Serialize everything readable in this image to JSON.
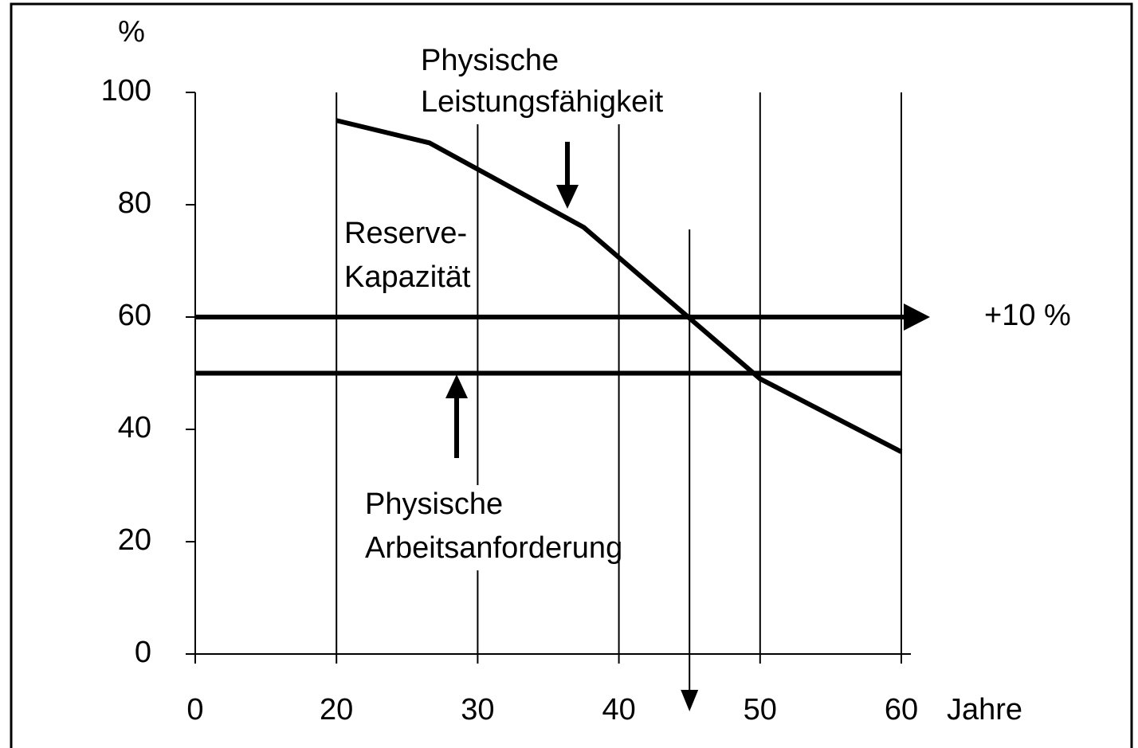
{
  "chart_data": {
    "type": "line",
    "y_label": "%",
    "x_label": "Jahre",
    "xlim": [
      0,
      60
    ],
    "ylim": [
      0,
      100
    ],
    "xticks": [
      0,
      20,
      30,
      40,
      50,
      60
    ],
    "yticks": [
      0,
      20,
      40,
      60,
      80,
      100
    ],
    "grid": true,
    "series": [
      {
        "x": [
          20,
          26.6,
          37.5,
          50,
          60
        ],
        "values": [
          95,
          91,
          76,
          49,
          36
        ],
        "color": "#000000"
      }
    ],
    "hlines": [
      {
        "value": 60,
        "label": "+10 %"
      },
      {
        "value": 50
      }
    ],
    "vline": 45,
    "annotations": [
      {
        "lines": [
          "Physische",
          "Leistungsfähigkeit"
        ]
      },
      {
        "lines": [
          "Reserve-",
          "Kapazität"
        ]
      },
      {
        "lines": [
          "Physische",
          "Arbeitsanforderung"
        ]
      }
    ]
  }
}
